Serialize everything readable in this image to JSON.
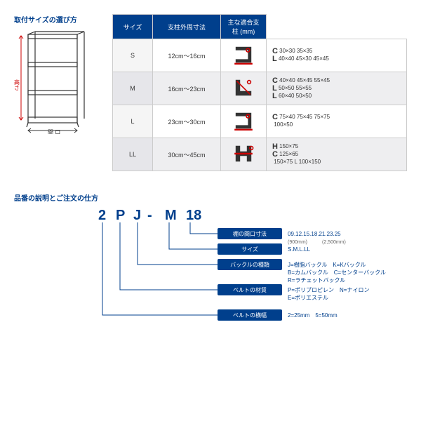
{
  "titles": {
    "selection": "取付サイズの選び方",
    "ordering": "品番の説明とご注文の仕方"
  },
  "shelf": {
    "side_label": "高さ",
    "bottom_label": "間 口"
  },
  "table": {
    "headers": [
      "サイズ",
      "支柱外周寸法",
      "主な適合支柱 (mm)"
    ],
    "rows": [
      {
        "size": "S",
        "range": "12cm〜16cm",
        "icon": "C",
        "profiles": [
          {
            "sym": "C",
            "text": "30×30  35×35"
          },
          {
            "sym": "L",
            "text": "40×40  45×30  45×45"
          }
        ]
      },
      {
        "size": "M",
        "range": "16cm〜23cm",
        "icon": "L",
        "profiles": [
          {
            "sym": "C",
            "text": "40×40  45×45  55×45"
          },
          {
            "sym": "L",
            "text": "50×50  55×55"
          },
          {
            "sym": "L",
            "text": "60×40  50×50"
          }
        ]
      },
      {
        "size": "L",
        "range": "23cm〜30cm",
        "icon": "C",
        "profiles": [
          {
            "sym": "C",
            "text": "75×40  75×45  75×75"
          },
          {
            "sym": "",
            "text": "100×50"
          }
        ]
      },
      {
        "size": "LL",
        "range": "30cm〜45cm",
        "icon": "H",
        "profiles": [
          {
            "sym": "H",
            "text": "150×75"
          },
          {
            "sym": "C",
            "text": "125×65"
          },
          {
            "sym": "",
            "text": "150×75   L 100×150"
          }
        ]
      }
    ]
  },
  "code": {
    "chars": [
      "2",
      "P",
      "J",
      "-",
      "M",
      "18"
    ]
  },
  "legend": [
    {
      "label": "棚の間口寸法",
      "value": "09.12.15.18.21.23.25",
      "note": "(900mm)　　　(2,500mm)"
    },
    {
      "label": "サイズ",
      "value": "S.M.L.LL",
      "note": ""
    },
    {
      "label": "バックルの種類",
      "value": "J=樹脂バックル　K=Kバックル\nB=カムバックル　C=センターバックル\nR=ラチェットバックル",
      "note": ""
    },
    {
      "label": "ベルトの材質",
      "value": "P=ポリプロピレン　N=ナイロン\nE=ポリエステル",
      "note": ""
    },
    {
      "label": "ベルトの横幅",
      "value": "2=25mm　5=50mm",
      "note": ""
    }
  ],
  "colors": {
    "brand": "#003f8c",
    "accent": "#c00",
    "grid": "#ccc"
  }
}
